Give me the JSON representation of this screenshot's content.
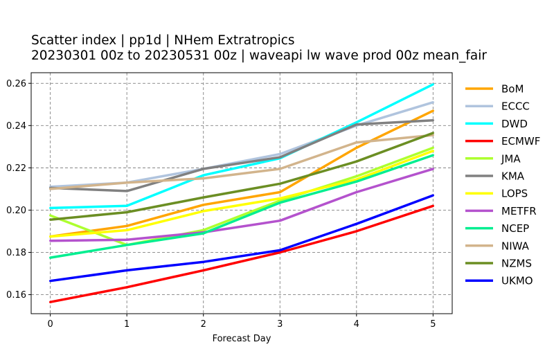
{
  "chart_data": {
    "type": "line",
    "title_line1": "Scatter index  |  pp1d | NHem Extratropics",
    "title_line2": "20230301 00z to 20230531 00z  |  waveapi lw wave prod 00z mean_fair",
    "xlabel": "Forecast Day",
    "ylabel": "",
    "x": [
      0,
      1,
      2,
      3,
      4,
      5
    ],
    "xlim": [
      -0.25,
      5.25
    ],
    "ylim": [
      0.151,
      0.265
    ],
    "yticks": [
      0.16,
      0.18,
      0.2,
      0.22,
      0.24,
      0.26
    ],
    "ytick_labels": [
      "0.16",
      "0.18",
      "0.20",
      "0.22",
      "0.24",
      "0.26"
    ],
    "xtick_labels": [
      "0",
      "1",
      "2",
      "3",
      "4",
      "5"
    ],
    "grid": true,
    "legend_position": "right outside",
    "series": [
      {
        "name": "BoM",
        "color": "#ffa500",
        "values": [
          0.1875,
          0.1925,
          0.2025,
          0.2085,
          0.2295,
          0.247
        ]
      },
      {
        "name": "ECCC",
        "color": "#b0c4de",
        "values": [
          0.211,
          0.213,
          0.2195,
          0.2265,
          0.24,
          0.251
        ]
      },
      {
        "name": "DWD",
        "color": "#00ffff",
        "values": [
          0.201,
          0.202,
          0.2165,
          0.2245,
          0.2415,
          0.2595
        ]
      },
      {
        "name": "ECMWF",
        "color": "#ff0000",
        "values": [
          0.1565,
          0.1635,
          0.1715,
          0.18,
          0.19,
          0.202
        ]
      },
      {
        "name": "JMA",
        "color": "#adff2f",
        "values": [
          0.1975,
          0.1835,
          0.1905,
          0.2045,
          0.216,
          0.2295
        ]
      },
      {
        "name": "KMA",
        "color": "#808080",
        "values": [
          0.2105,
          0.209,
          0.2195,
          0.225,
          0.2405,
          0.2425
        ]
      },
      {
        "name": "LOPS",
        "color": "#ffff00",
        "values": [
          0.1875,
          0.1905,
          0.1995,
          0.2055,
          0.2145,
          0.228
        ]
      },
      {
        "name": "METFR",
        "color": "#b452cd",
        "values": [
          0.1855,
          0.186,
          0.1895,
          0.195,
          0.2085,
          0.2195
        ]
      },
      {
        "name": "NCEP",
        "color": "#00ee90",
        "values": [
          0.1775,
          0.1835,
          0.189,
          0.2035,
          0.2135,
          0.226
        ]
      },
      {
        "name": "NIWA",
        "color": "#d2b48c",
        "values": [
          0.21,
          0.213,
          0.215,
          0.2195,
          0.232,
          0.2355
        ]
      },
      {
        "name": "NZMS",
        "color": "#6b8e23",
        "values": [
          0.1955,
          0.199,
          0.206,
          0.2125,
          0.223,
          0.2365
        ]
      },
      {
        "name": "UKMO",
        "color": "#0000ff",
        "values": [
          0.1665,
          0.1715,
          0.1755,
          0.181,
          0.1935,
          0.207
        ]
      }
    ]
  }
}
